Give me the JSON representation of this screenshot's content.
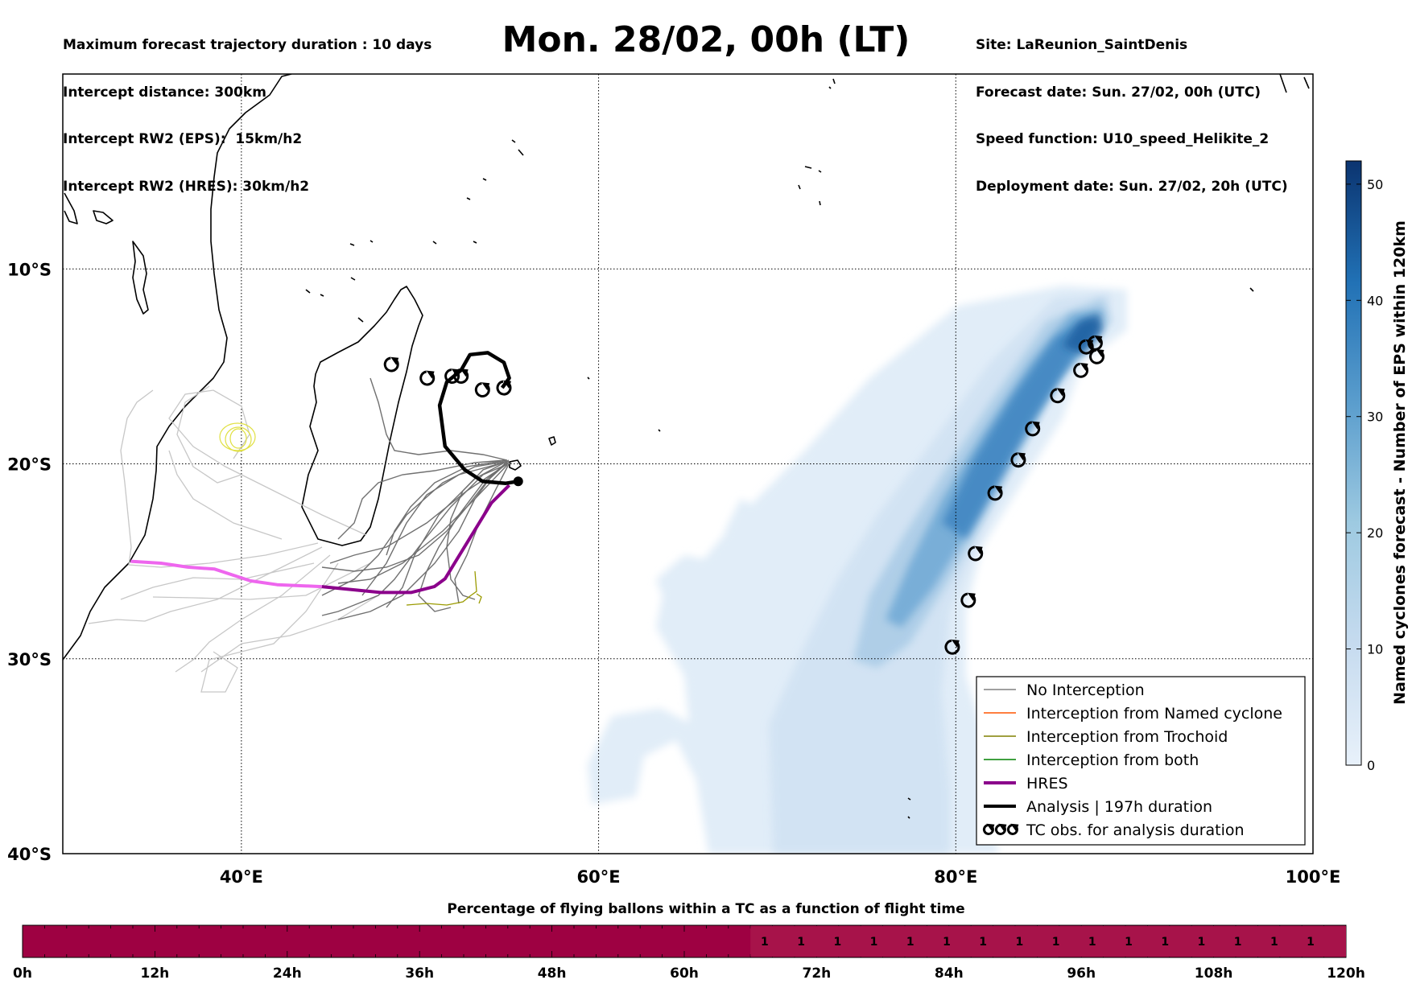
{
  "header": {
    "left": [
      "Maximum forecast trajectory duration : 10 days",
      "Intercept distance: 300km",
      "Intercept RW2 (EPS):  15km/h2",
      "Intercept RW2 (HRES): 30km/h2"
    ],
    "title": "Mon. 28/02, 00h (LT)",
    "right": [
      "Site: LaReunion_SaintDenis",
      "Forecast date: Sun. 27/02, 00h (UTC)",
      "Speed function: U10_speed_Helikite_2",
      "Deployment date: Sun. 27/02, 20h (UTC)"
    ]
  },
  "map": {
    "lon_range": [
      30,
      100
    ],
    "lat_range": [
      -40,
      0
    ],
    "x_ticks": [
      "40°E",
      "60°E",
      "80°E",
      "100°E"
    ],
    "y_ticks": [
      "10°S",
      "20°S",
      "30°S",
      "40°S"
    ]
  },
  "legend": {
    "items": [
      {
        "label": "No Interception",
        "color": "#808080",
        "width": 1.5,
        "marker": false
      },
      {
        "label": "Interception from Named cyclone",
        "color": "#ff5500",
        "width": 1.5,
        "marker": false
      },
      {
        "label": "Interception from Trochoid",
        "color": "#808000",
        "width": 1.5,
        "marker": false
      },
      {
        "label": "Interception from both",
        "color": "#008000",
        "width": 1.5,
        "marker": false
      },
      {
        "label": "HRES",
        "color": "#8b008b",
        "width": 4,
        "marker": false
      },
      {
        "label": "Analysis | 197h duration",
        "color": "#000000",
        "width": 4,
        "marker": false
      },
      {
        "label": "TC obs. for analysis duration",
        "color": "#000000",
        "width": 0,
        "marker": true
      }
    ]
  },
  "colorbar": {
    "label": "Named cyclones forecast - Number of EPS within 120km",
    "min": 0,
    "max": 52,
    "ticks": [
      0,
      10,
      20,
      30,
      40,
      50
    ],
    "color_low": "#e8f1fa",
    "color_high": "#0b3470"
  },
  "timebar": {
    "title": "Percentage of flying ballons within a TC as a function of flight time",
    "ticks": [
      "0h",
      "12h",
      "24h",
      "36h",
      "48h",
      "60h",
      "72h",
      "84h",
      "96h",
      "108h",
      "120h"
    ],
    "fill_color": "#9e0142",
    "cell_label": "1"
  },
  "chart_data": {
    "type": "map",
    "title": "Mon. 28/02, 00h (LT)",
    "tc_observations": [
      {
        "lon": 87.3,
        "lat": -14.0
      },
      {
        "lon": 87.8,
        "lat": -13.8
      },
      {
        "lon": 87.9,
        "lat": -14.5
      },
      {
        "lon": 87.0,
        "lat": -15.2
      },
      {
        "lon": 85.7,
        "lat": -16.5
      },
      {
        "lon": 84.3,
        "lat": -18.2
      },
      {
        "lon": 83.5,
        "lat": -19.8
      },
      {
        "lon": 82.2,
        "lat": -21.5
      },
      {
        "lon": 81.1,
        "lat": -24.6
      },
      {
        "lon": 80.7,
        "lat": -27.0
      },
      {
        "lon": 79.8,
        "lat": -29.4
      },
      {
        "lon": 48.4,
        "lat": -14.9
      },
      {
        "lon": 50.4,
        "lat": -15.6
      },
      {
        "lon": 51.8,
        "lat": -15.5
      },
      {
        "lon": 52.3,
        "lat": -15.5
      },
      {
        "lon": 53.5,
        "lat": -16.2
      },
      {
        "lon": 54.7,
        "lat": -16.1
      }
    ],
    "launch_site": {
      "lon": 55.5,
      "lat": -20.9
    },
    "hres_track": [
      [
        55.0,
        -21.1
      ],
      [
        54.0,
        -22.0
      ],
      [
        53.0,
        -23.5
      ],
      [
        52.0,
        -25.0
      ],
      [
        51.4,
        -25.9
      ],
      [
        50.8,
        -26.3
      ],
      [
        49.5,
        -26.6
      ],
      [
        47.8,
        -26.6
      ],
      [
        44.5,
        -26.3
      ],
      [
        42.0,
        -26.2
      ],
      [
        40.5,
        -26.0
      ],
      [
        38.5,
        -25.4
      ],
      [
        37.0,
        -25.3
      ],
      [
        35.5,
        -25.1
      ],
      [
        33.8,
        -25.0
      ]
    ],
    "analysis_track": [
      [
        55.5,
        -20.9
      ],
      [
        54.8,
        -21.0
      ],
      [
        53.5,
        -20.9
      ],
      [
        52.5,
        -20.3
      ],
      [
        51.4,
        -19.1
      ],
      [
        51.1,
        -17.0
      ],
      [
        51.5,
        -15.8
      ],
      [
        52.3,
        -15.2
      ],
      [
        52.8,
        -14.4
      ],
      [
        53.8,
        -14.3
      ],
      [
        54.7,
        -14.8
      ],
      [
        55.0,
        -15.6
      ],
      [
        54.6,
        -16.1
      ]
    ],
    "colorbar_range": [
      0,
      52
    ]
  }
}
